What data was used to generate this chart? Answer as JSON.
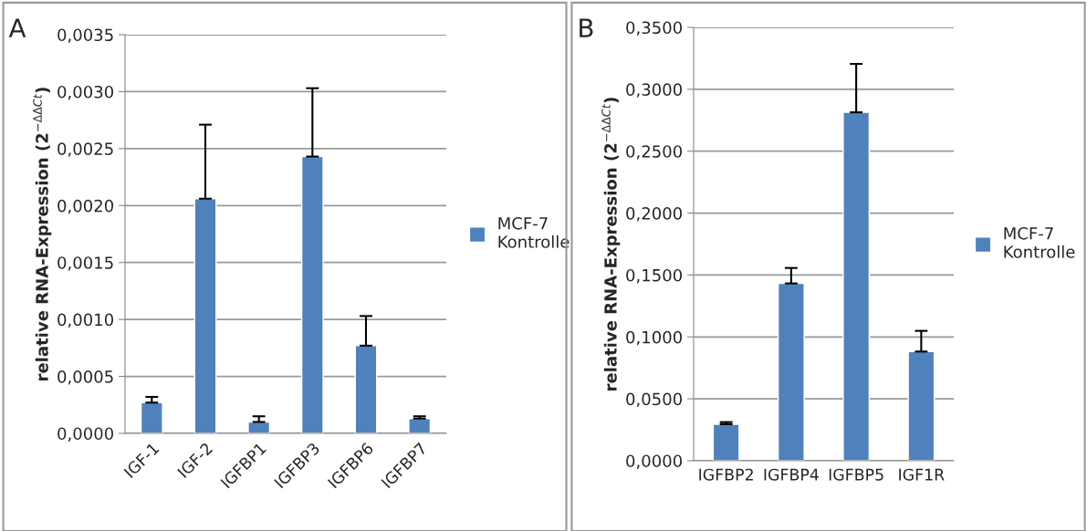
{
  "chart_data": [
    {
      "type": "bar",
      "annotations": [
        "A"
      ],
      "ylabel": "relative RNA-Expression (2$^{−ΔΔCt}$)",
      "categories": [
        "IGF-1",
        "IGF-2",
        "IGFBP1",
        "IGFBP3",
        "IGFBP6",
        "IGFBP7"
      ],
      "series": [
        {
          "name": "MCF-7 Kontrolle",
          "color": "#4f81bd",
          "values": [
            0.00027,
            0.00206,
            0.0001,
            0.00243,
            0.00077,
            0.00013
          ],
          "errors": [
            [
              0.00027,
              0.00032
            ],
            [
              0.00206,
              0.00271
            ],
            [
              0.0001,
              0.00015
            ],
            [
              0.00243,
              0.00303
            ],
            [
              0.00077,
              0.00103
            ],
            [
              0.00013,
              0.00015
            ]
          ]
        }
      ],
      "ylim": [
        0,
        0.0035
      ],
      "yticks": [
        {
          "value": 0,
          "label": "0,0000"
        },
        {
          "value": 0.0005,
          "label": "0,0005"
        },
        {
          "value": 0.001,
          "label": "0,0010"
        },
        {
          "value": 0.0015,
          "label": "0,0015"
        },
        {
          "value": 0.002,
          "label": "0,0020"
        },
        {
          "value": 0.0025,
          "label": "0,0025"
        },
        {
          "value": 0.003,
          "label": "0,0030"
        },
        {
          "value": 0.0035,
          "label": "0,0035"
        }
      ],
      "grid": "y",
      "legend": "right"
    },
    {
      "type": "bar",
      "annotations": [
        "B"
      ],
      "ylabel": "relative RNA-Expression (2$^{−ΔΔCt}$)",
      "categories": [
        "IGFBP2",
        "IGFBP4",
        "IGFBP5",
        "IGF1R"
      ],
      "series": [
        {
          "name": "MCF-7 Kontrolle",
          "color": "#4f81bd",
          "values": [
            0.0295,
            0.1432,
            0.2814,
            0.0882
          ],
          "errors": [
            [
              0.0295,
              0.0312
            ],
            [
              0.1432,
              0.1557
            ],
            [
              0.2814,
              0.3205
            ],
            [
              0.0882,
              0.1049
            ]
          ]
        }
      ],
      "ylim": [
        0,
        0.35
      ],
      "yticks": [
        {
          "value": 0,
          "label": "0,0000"
        },
        {
          "value": 0.05,
          "label": "0,0500"
        },
        {
          "value": 0.1,
          "label": "0,1000"
        },
        {
          "value": 0.15,
          "label": "0,1500"
        },
        {
          "value": 0.2,
          "label": "0,2000"
        },
        {
          "value": 0.25,
          "label": "0,2500"
        },
        {
          "value": 0.3,
          "label": "0,3000"
        },
        {
          "value": 0.35,
          "label": "0,3500"
        }
      ],
      "grid": "y",
      "legend": "right"
    }
  ]
}
